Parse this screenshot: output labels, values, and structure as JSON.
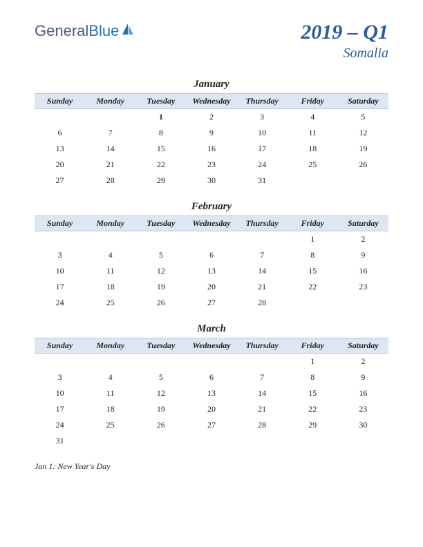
{
  "logo": {
    "part1": "General",
    "part2": "Blue"
  },
  "title": {
    "main": "2019 – Q1",
    "sub": "Somalia"
  },
  "colors": {
    "header_bg": "#dde6f2",
    "header_border": "#b8c8de",
    "title_color": "#2a5a9a",
    "holiday_color": "#b02020",
    "text_color": "#222222"
  },
  "day_headers": [
    "Sunday",
    "Monday",
    "Tuesday",
    "Wednesday",
    "Thursday",
    "Friday",
    "Saturday"
  ],
  "months": [
    {
      "name": "January",
      "weeks": [
        [
          "",
          "",
          "1",
          "2",
          "3",
          "4",
          "5"
        ],
        [
          "6",
          "7",
          "8",
          "9",
          "10",
          "11",
          "12"
        ],
        [
          "13",
          "14",
          "15",
          "16",
          "17",
          "18",
          "19"
        ],
        [
          "20",
          "21",
          "22",
          "23",
          "24",
          "25",
          "26"
        ],
        [
          "27",
          "28",
          "29",
          "30",
          "31",
          "",
          ""
        ]
      ],
      "holidays": [
        [
          0,
          2
        ]
      ]
    },
    {
      "name": "February",
      "weeks": [
        [
          "",
          "",
          "",
          "",
          "",
          "1",
          "2"
        ],
        [
          "3",
          "4",
          "5",
          "6",
          "7",
          "8",
          "9"
        ],
        [
          "10",
          "11",
          "12",
          "13",
          "14",
          "15",
          "16"
        ],
        [
          "17",
          "18",
          "19",
          "20",
          "21",
          "22",
          "23"
        ],
        [
          "24",
          "25",
          "26",
          "27",
          "28",
          "",
          ""
        ]
      ],
      "holidays": []
    },
    {
      "name": "March",
      "weeks": [
        [
          "",
          "",
          "",
          "",
          "",
          "1",
          "2"
        ],
        [
          "3",
          "4",
          "5",
          "6",
          "7",
          "8",
          "9"
        ],
        [
          "10",
          "11",
          "12",
          "13",
          "14",
          "15",
          "16"
        ],
        [
          "17",
          "18",
          "19",
          "20",
          "21",
          "22",
          "23"
        ],
        [
          "24",
          "25",
          "26",
          "27",
          "28",
          "29",
          "30"
        ],
        [
          "31",
          "",
          "",
          "",
          "",
          "",
          ""
        ]
      ],
      "holidays": []
    }
  ],
  "footnotes": [
    "Jan 1: New Year's Day"
  ]
}
